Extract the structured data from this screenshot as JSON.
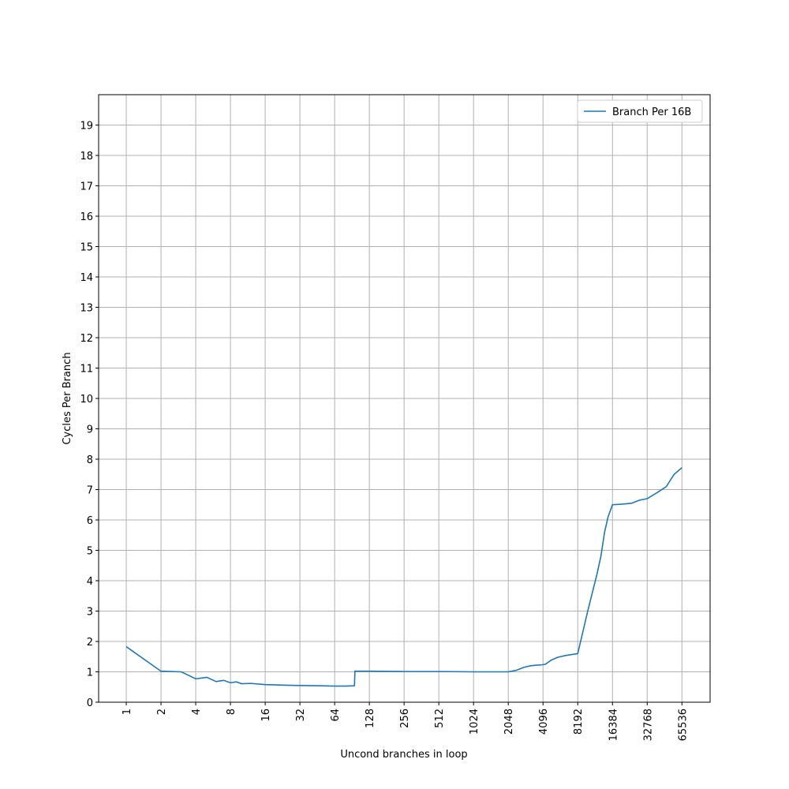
{
  "chart_data": {
    "type": "line",
    "xlabel": "Uncond branches in loop",
    "ylabel": "Cycles Per Branch",
    "x": [
      1,
      2,
      3,
      4,
      5,
      6,
      7,
      8,
      9,
      10,
      12,
      16,
      20,
      24,
      32,
      48,
      64,
      80,
      95,
      96,
      128,
      256,
      512,
      1024,
      2048,
      2400,
      2800,
      3200,
      3600,
      4000,
      4300,
      4800,
      5500,
      6500,
      8192,
      10000,
      12000,
      13000,
      14000,
      15000,
      16384,
      20000,
      24000,
      28000,
      32768,
      40000,
      48000,
      56000,
      65536
    ],
    "series": [
      {
        "name": "Branch Per 16B",
        "color": "#1f77b4",
        "values": [
          1.83,
          1.02,
          1.0,
          0.77,
          0.82,
          0.68,
          0.72,
          0.64,
          0.67,
          0.61,
          0.62,
          0.58,
          0.57,
          0.56,
          0.55,
          0.54,
          0.53,
          0.53,
          0.54,
          1.02,
          1.02,
          1.01,
          1.01,
          1.0,
          1.0,
          1.05,
          1.15,
          1.2,
          1.22,
          1.23,
          1.25,
          1.38,
          1.48,
          1.54,
          1.6,
          3.0,
          4.2,
          4.8,
          5.6,
          6.1,
          6.5,
          6.52,
          6.55,
          6.65,
          6.7,
          6.9,
          7.1,
          7.5,
          7.72
        ]
      }
    ],
    "xscale": "log2",
    "xlim": [
      0.576,
      115000
    ],
    "xticks": [
      1,
      2,
      4,
      8,
      16,
      32,
      64,
      128,
      256,
      512,
      1024,
      2048,
      4096,
      8192,
      16384,
      32768,
      65536
    ],
    "ylim": [
      0,
      20
    ],
    "yticks": [
      0,
      1,
      2,
      3,
      4,
      5,
      6,
      7,
      8,
      9,
      10,
      11,
      12,
      13,
      14,
      15,
      16,
      17,
      18,
      19
    ],
    "grid": true,
    "legend": "upper right"
  }
}
